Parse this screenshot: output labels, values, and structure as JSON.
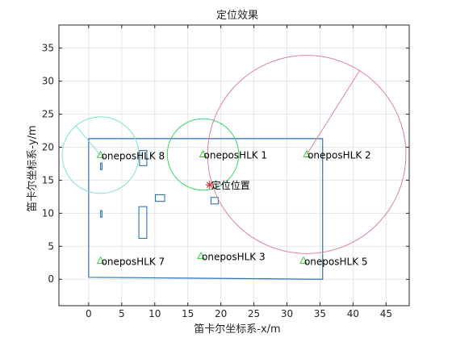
{
  "chart_data": {
    "type": "scatter",
    "title": "定位效果",
    "xlabel": "笛卡尔坐标系-x/m",
    "ylabel": "笛卡尔坐标系-y/m",
    "xlim": [
      -4.5,
      48.5
    ],
    "ylim": [
      -4,
      38.5
    ],
    "xticks": [
      0,
      5,
      10,
      15,
      20,
      25,
      30,
      35,
      40,
      45
    ],
    "yticks": [
      0,
      5,
      10,
      15,
      20,
      25,
      30,
      35
    ],
    "grid": true,
    "anchors": [
      {
        "label": "oneposHLK 8",
        "x": 1.8,
        "y": 18.8
      },
      {
        "label": "oneposHLK 1",
        "x": 17.3,
        "y": 18.9
      },
      {
        "label": "oneposHLK 2",
        "x": 33.0,
        "y": 18.9
      },
      {
        "label": "oneposHLK 7",
        "x": 1.8,
        "y": 2.8
      },
      {
        "label": "oneposHLK 3",
        "x": 17.0,
        "y": 3.5
      },
      {
        "label": "oneposHLK 5",
        "x": 32.5,
        "y": 2.8
      }
    ],
    "circles": [
      {
        "cx": 1.8,
        "cy": 18.8,
        "r": 5.8,
        "color": "#7ee3d0",
        "radius_end": [
          -1.9,
          23.2
        ]
      },
      {
        "cx": 17.3,
        "cy": 18.9,
        "r": 5.4,
        "color": "#3bd66a"
      },
      {
        "cx": 33.0,
        "cy": 18.9,
        "r": 15.0,
        "color": "#e0809a",
        "radius_end": [
          41.0,
          31.6
        ]
      }
    ],
    "estimated": {
      "label": "定位位置",
      "x": 18.3,
      "y": 14.3,
      "color": "#d62b2b"
    },
    "floorplan": {
      "outline": [
        [
          0,
          0.3
        ],
        [
          35.4,
          0
        ],
        [
          35.4,
          21.3
        ],
        [
          0,
          21.3
        ]
      ],
      "rooms": [
        {
          "x": 7.7,
          "y": 17.2,
          "w": 1.1,
          "h": 2.3
        },
        {
          "x": 10.1,
          "y": 11.8,
          "w": 1.4,
          "h": 1.0
        },
        {
          "x": 18.5,
          "y": 11.4,
          "w": 1.1,
          "h": 1.0
        },
        {
          "x": 7.6,
          "y": 6.2,
          "w": 1.2,
          "h": 4.8
        },
        {
          "x": 1.8,
          "y": 16.6,
          "w": 0.22,
          "h": 1.0
        },
        {
          "x": 1.8,
          "y": 9.4,
          "w": 0.22,
          "h": 1.0
        }
      ],
      "color": "#2a73b8"
    },
    "colors": {
      "anchor": "#33cc33",
      "axis": "#262626",
      "grid": "#e6e6e6"
    }
  }
}
